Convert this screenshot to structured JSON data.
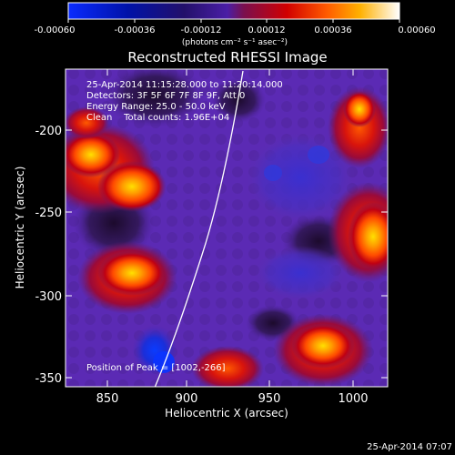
{
  "colorbar": {
    "tick_labels": [
      "-0.00060",
      "-0.00036",
      "-0.00012",
      "0.00012",
      "0.00036",
      "0.00060"
    ],
    "units_label": "(photons cm⁻² s⁻¹ asec⁻²)"
  },
  "plot": {
    "title": "Reconstructed RHESSI Image",
    "x_axis_label": "Heliocentric X (arcsec)",
    "y_axis_label": "Heliocentric Y (arcsec)",
    "x_ticks": [
      "850",
      "900",
      "950",
      "1000"
    ],
    "y_ticks": [
      "-200",
      "-250",
      "-300",
      "-350"
    ]
  },
  "annotations": {
    "time_range": "25-Apr-2014 11:15:28.000 to 11:20:14.000",
    "detectors": "Detectors: 3F 5F 6F 7F 8F 9F, Att 0",
    "energy_range": "Energy Range: 25.0 - 50.0 keV",
    "clean_counts": "Clean    Total counts: 1.96E+04",
    "peak_position": "Position of Peak = [1002,-266]"
  },
  "footer": {
    "timestamp": "25-Apr-2014 07:07"
  },
  "colors": {
    "background": "#000000",
    "axes": "#ffffff",
    "negative_end": "#0015ff",
    "zero_level": "#5c2fb3",
    "positive_mid": "#ff4c00",
    "positive_end": "#ffffff"
  }
}
